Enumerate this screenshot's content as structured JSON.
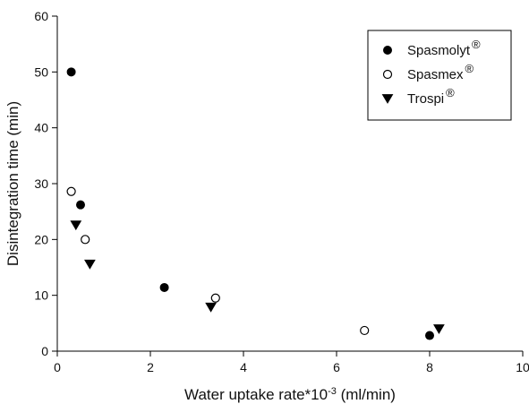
{
  "chart_data": {
    "type": "scatter",
    "xlabel": "Water uptake rate*10",
    "xlabel_exponent": "-3",
    "xlabel_unit": " (ml/min)",
    "ylabel": "Disintegration time (min)",
    "xlim": [
      0,
      10
    ],
    "ylim": [
      0,
      60
    ],
    "x_ticks": [
      0,
      2,
      4,
      6,
      8,
      10
    ],
    "y_ticks": [
      0,
      10,
      20,
      30,
      40,
      50,
      60
    ],
    "grid": false,
    "legend_position": "top-right",
    "registered_mark": "®",
    "series": [
      {
        "name": "Spasmolyt",
        "marker": "filled-circle",
        "color": "#000000",
        "points": [
          {
            "x": 0.3,
            "y": 50.0
          },
          {
            "x": 0.5,
            "y": 26.2
          },
          {
            "x": 2.3,
            "y": 11.4
          },
          {
            "x": 8.0,
            "y": 2.8
          }
        ]
      },
      {
        "name": "Spasmex",
        "marker": "open-circle",
        "color": "#000000",
        "points": [
          {
            "x": 0.3,
            "y": 28.6
          },
          {
            "x": 0.6,
            "y": 20.0
          },
          {
            "x": 3.4,
            "y": 9.5
          },
          {
            "x": 6.6,
            "y": 3.7
          }
        ]
      },
      {
        "name": "Trospi",
        "marker": "filled-triangle-down",
        "color": "#000000",
        "points": [
          {
            "x": 0.4,
            "y": 22.6
          },
          {
            "x": 0.7,
            "y": 15.6
          },
          {
            "x": 3.3,
            "y": 7.9
          },
          {
            "x": 8.2,
            "y": 4.0
          }
        ]
      }
    ]
  }
}
